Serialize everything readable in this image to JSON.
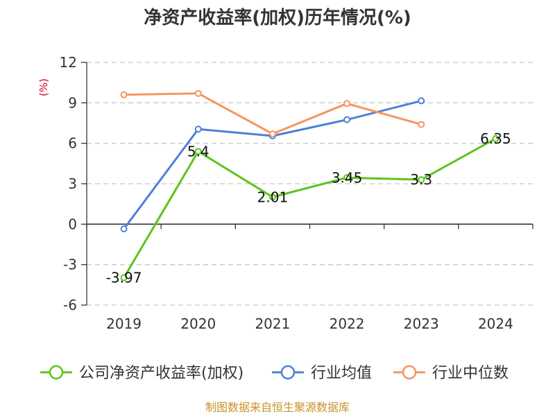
{
  "chart_data": {
    "type": "line",
    "title": "净资产收益率(加权)历年情况(%)",
    "ylabel": "(%)",
    "categories": [
      "2019",
      "2020",
      "2021",
      "2022",
      "2023",
      "2024"
    ],
    "ylim": [
      -6,
      12
    ],
    "yticks": [
      12,
      9,
      6,
      3,
      0,
      -3,
      -6
    ],
    "grid": true,
    "legend_position": "bottom",
    "series": [
      {
        "name": "公司净资产收益率(加权)",
        "color": "#5cc41c",
        "values": [
          -3.97,
          5.4,
          2.01,
          3.45,
          3.3,
          6.35
        ],
        "labels": [
          "-3.97",
          "5.4",
          "2.01",
          "3.45",
          "3.3",
          "6.35"
        ]
      },
      {
        "name": "行业均值",
        "color": "#4e7fd8",
        "values": [
          -0.35,
          7.05,
          6.55,
          7.75,
          9.15,
          null
        ]
      },
      {
        "name": "行业中位数",
        "color": "#f59562",
        "values": [
          9.6,
          9.7,
          6.7,
          8.95,
          7.4,
          null
        ]
      }
    ]
  },
  "source": "制图数据来自恒生聚源数据库"
}
